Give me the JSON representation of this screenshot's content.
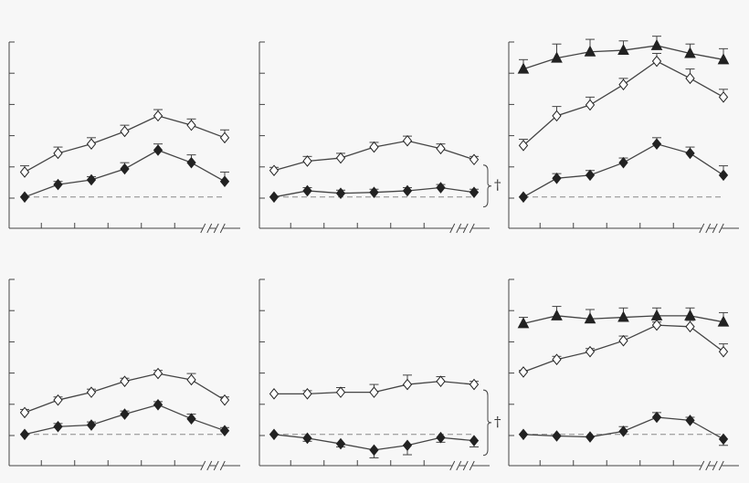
{
  "figure": {
    "colors": {
      "background": "#f7f7f7",
      "line": "#444444",
      "filled_marker": "#222222",
      "open_marker_fill": "#ffffff",
      "baseline": "#888888"
    },
    "x_tick_count": 7,
    "y_tick_count": 6,
    "axis_break_symbol": "//",
    "footnote_symbol": "†"
  },
  "chart_data": [
    {
      "type": "line",
      "panel": "top-left",
      "x": [
        1,
        2,
        3,
        4,
        5,
        6,
        7
      ],
      "baseline": 0,
      "ylim": [
        -1,
        6
      ],
      "grid": false,
      "series": [
        {
          "marker": "open-diamond",
          "values": [
            0.8,
            1.4,
            1.7,
            2.1,
            2.6,
            2.3,
            1.9
          ],
          "error": [
            0.2,
            0.2,
            0.2,
            0.2,
            0.2,
            0.2,
            0.25
          ]
        },
        {
          "marker": "filled-diamond",
          "values": [
            0,
            0.4,
            0.55,
            0.9,
            1.5,
            1.1,
            0.5
          ],
          "error": [
            0,
            0.1,
            0.1,
            0.2,
            0.2,
            0.25,
            0.3
          ]
        }
      ],
      "footnote": ""
    },
    {
      "type": "line",
      "panel": "top-middle",
      "x": [
        1,
        2,
        3,
        4,
        5,
        6,
        7
      ],
      "baseline": 0,
      "ylim": [
        -1,
        6
      ],
      "grid": false,
      "series": [
        {
          "marker": "open-diamond",
          "values": [
            0.85,
            1.15,
            1.25,
            1.6,
            1.8,
            1.55,
            1.2
          ],
          "error": [
            0.1,
            0.15,
            0.15,
            0.15,
            0.15,
            0.15,
            0.1
          ]
        },
        {
          "marker": "filled-diamond",
          "values": [
            0,
            0.2,
            0.12,
            0.15,
            0.2,
            0.3,
            0.15
          ],
          "error": [
            0,
            0.1,
            0.1,
            0.1,
            0.1,
            0.1,
            0.1
          ]
        }
      ],
      "footnote": "†"
    },
    {
      "type": "line",
      "panel": "top-right",
      "x": [
        1,
        2,
        3,
        4,
        5,
        6,
        7
      ],
      "baseline": 0,
      "ylim": [
        -1,
        6
      ],
      "grid": false,
      "series": [
        {
          "marker": "filled-triangle",
          "values": [
            4.1,
            4.45,
            4.65,
            4.7,
            4.85,
            4.6,
            4.4
          ],
          "error": [
            0.3,
            0.45,
            0.4,
            0.3,
            0.3,
            0.3,
            0.35
          ]
        },
        {
          "marker": "open-diamond",
          "values": [
            1.65,
            2.6,
            2.95,
            3.6,
            4.35,
            3.8,
            3.2
          ],
          "error": [
            0.2,
            0.3,
            0.25,
            0.2,
            0.25,
            0.3,
            0.25
          ]
        },
        {
          "marker": "filled-diamond",
          "values": [
            0,
            0.6,
            0.7,
            1.1,
            1.7,
            1.4,
            0.7
          ],
          "error": [
            0,
            0.15,
            0.15,
            0.15,
            0.2,
            0.2,
            0.3
          ]
        }
      ],
      "footnote": ""
    },
    {
      "type": "line",
      "panel": "bottom-left",
      "x": [
        1,
        2,
        3,
        4,
        5,
        6,
        7
      ],
      "baseline": 0,
      "ylim": [
        -1,
        6
      ],
      "grid": false,
      "series": [
        {
          "marker": "open-diamond",
          "values": [
            0.7,
            1.1,
            1.35,
            1.7,
            1.95,
            1.75,
            1.1
          ],
          "error": [
            0.1,
            0.1,
            0.1,
            0.1,
            0.1,
            0.2,
            0.1
          ]
        },
        {
          "marker": "filled-diamond",
          "values": [
            0,
            0.25,
            0.3,
            0.65,
            0.95,
            0.5,
            0.12
          ],
          "error": [
            0,
            0.1,
            0.1,
            0.1,
            0.1,
            0.15,
            0.1
          ]
        }
      ],
      "footnote": ""
    },
    {
      "type": "line",
      "panel": "bottom-middle",
      "x": [
        1,
        2,
        3,
        4,
        5,
        6,
        7
      ],
      "baseline": 0,
      "ylim": [
        -1,
        6
      ],
      "grid": false,
      "series": [
        {
          "marker": "open-diamond",
          "values": [
            1.3,
            1.3,
            1.35,
            1.35,
            1.6,
            1.7,
            1.6
          ],
          "error": [
            0,
            0.1,
            0.15,
            0.25,
            0.3,
            0.15,
            0.1
          ]
        },
        {
          "marker": "filled-diamond",
          "values": [
            0,
            -0.12,
            -0.3,
            -0.5,
            -0.35,
            -0.1,
            -0.2
          ],
          "error": [
            0,
            0.1,
            0.1,
            0.25,
            0.3,
            0.15,
            0.2
          ]
        }
      ],
      "footnote": "†"
    },
    {
      "type": "line",
      "panel": "bottom-right",
      "x": [
        1,
        2,
        3,
        4,
        5,
        6,
        7
      ],
      "baseline": 0,
      "ylim": [
        -1,
        6
      ],
      "grid": false,
      "series": [
        {
          "marker": "filled-triangle",
          "values": [
            3.55,
            3.8,
            3.7,
            3.75,
            3.8,
            3.8,
            3.6
          ],
          "error": [
            0.2,
            0.3,
            0.3,
            0.3,
            0.25,
            0.25,
            0.3
          ]
        },
        {
          "marker": "open-diamond",
          "values": [
            2,
            2.4,
            2.65,
            3.0,
            3.5,
            3.45,
            2.65
          ],
          "error": [
            0.05,
            0.1,
            0.1,
            0.15,
            0.1,
            0.2,
            0.25
          ]
        },
        {
          "marker": "filled-diamond",
          "values": [
            0,
            -0.05,
            -0.08,
            0.1,
            0.55,
            0.45,
            -0.15
          ],
          "error": [
            0,
            0,
            0,
            0.15,
            0.15,
            0.1,
            0.2
          ]
        }
      ],
      "footnote": ""
    }
  ]
}
